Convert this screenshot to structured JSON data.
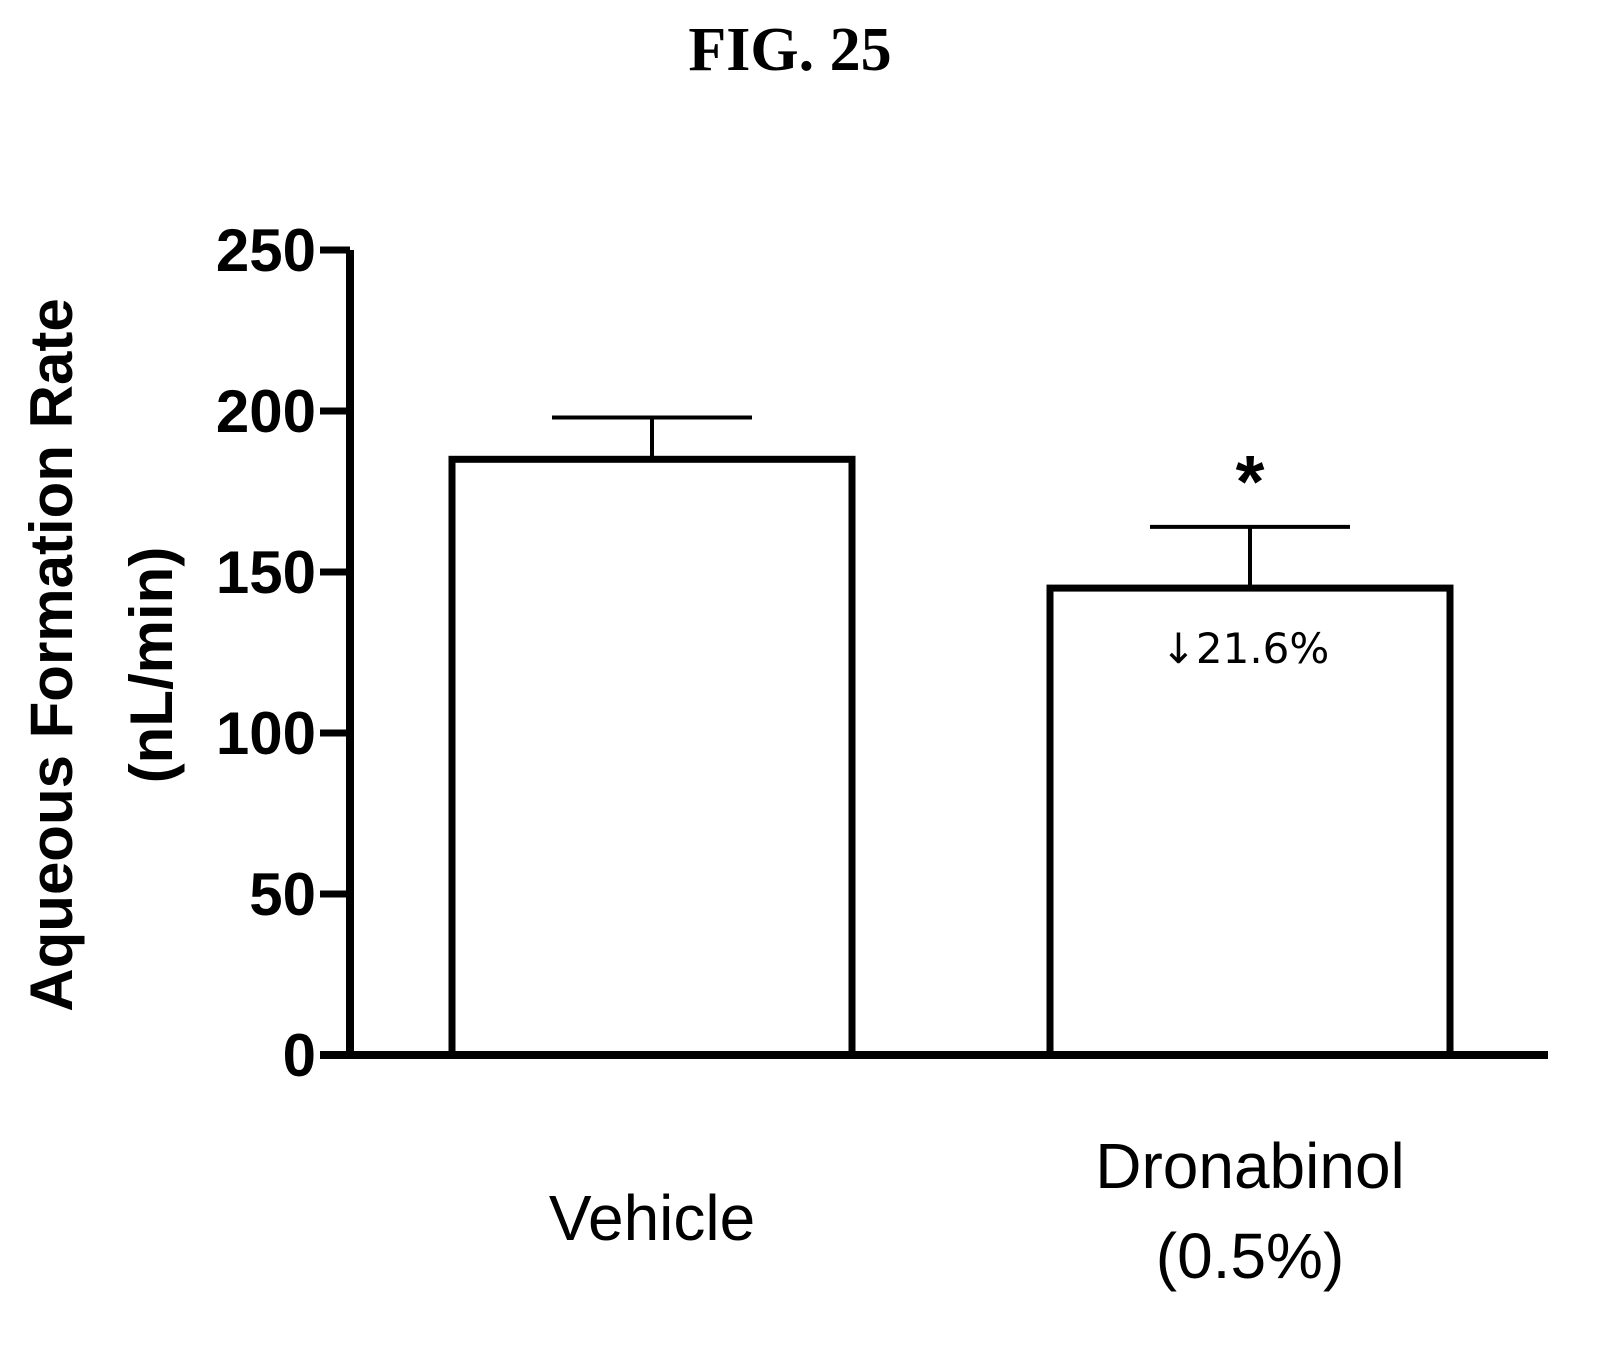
{
  "figure": {
    "label": "FIG. 25"
  },
  "chart_data": {
    "type": "bar",
    "title": "FIG. 25",
    "ylabel_line1": "Aqueous Formation Rate",
    "ylabel_line2": "(nL/min)",
    "xlabel": "",
    "ylim": [
      0,
      250
    ],
    "yticks": [
      0,
      50,
      100,
      150,
      200,
      250
    ],
    "categories": [
      {
        "line1": "Vehicle",
        "line2": ""
      },
      {
        "line1": "Dronabinol",
        "line2": "(0.5%)"
      }
    ],
    "values": [
      185,
      145
    ],
    "error_upper": [
      13,
      19
    ],
    "annotations": [
      {
        "category_index": 1,
        "text": "↓21.6%"
      }
    ],
    "significance": [
      {
        "category_index": 1,
        "mark": "*"
      }
    ],
    "grid": false,
    "colors": {
      "bar_fill": "#ffffff",
      "bar_stroke": "#000000",
      "axis": "#000000",
      "text": "#000000"
    }
  }
}
